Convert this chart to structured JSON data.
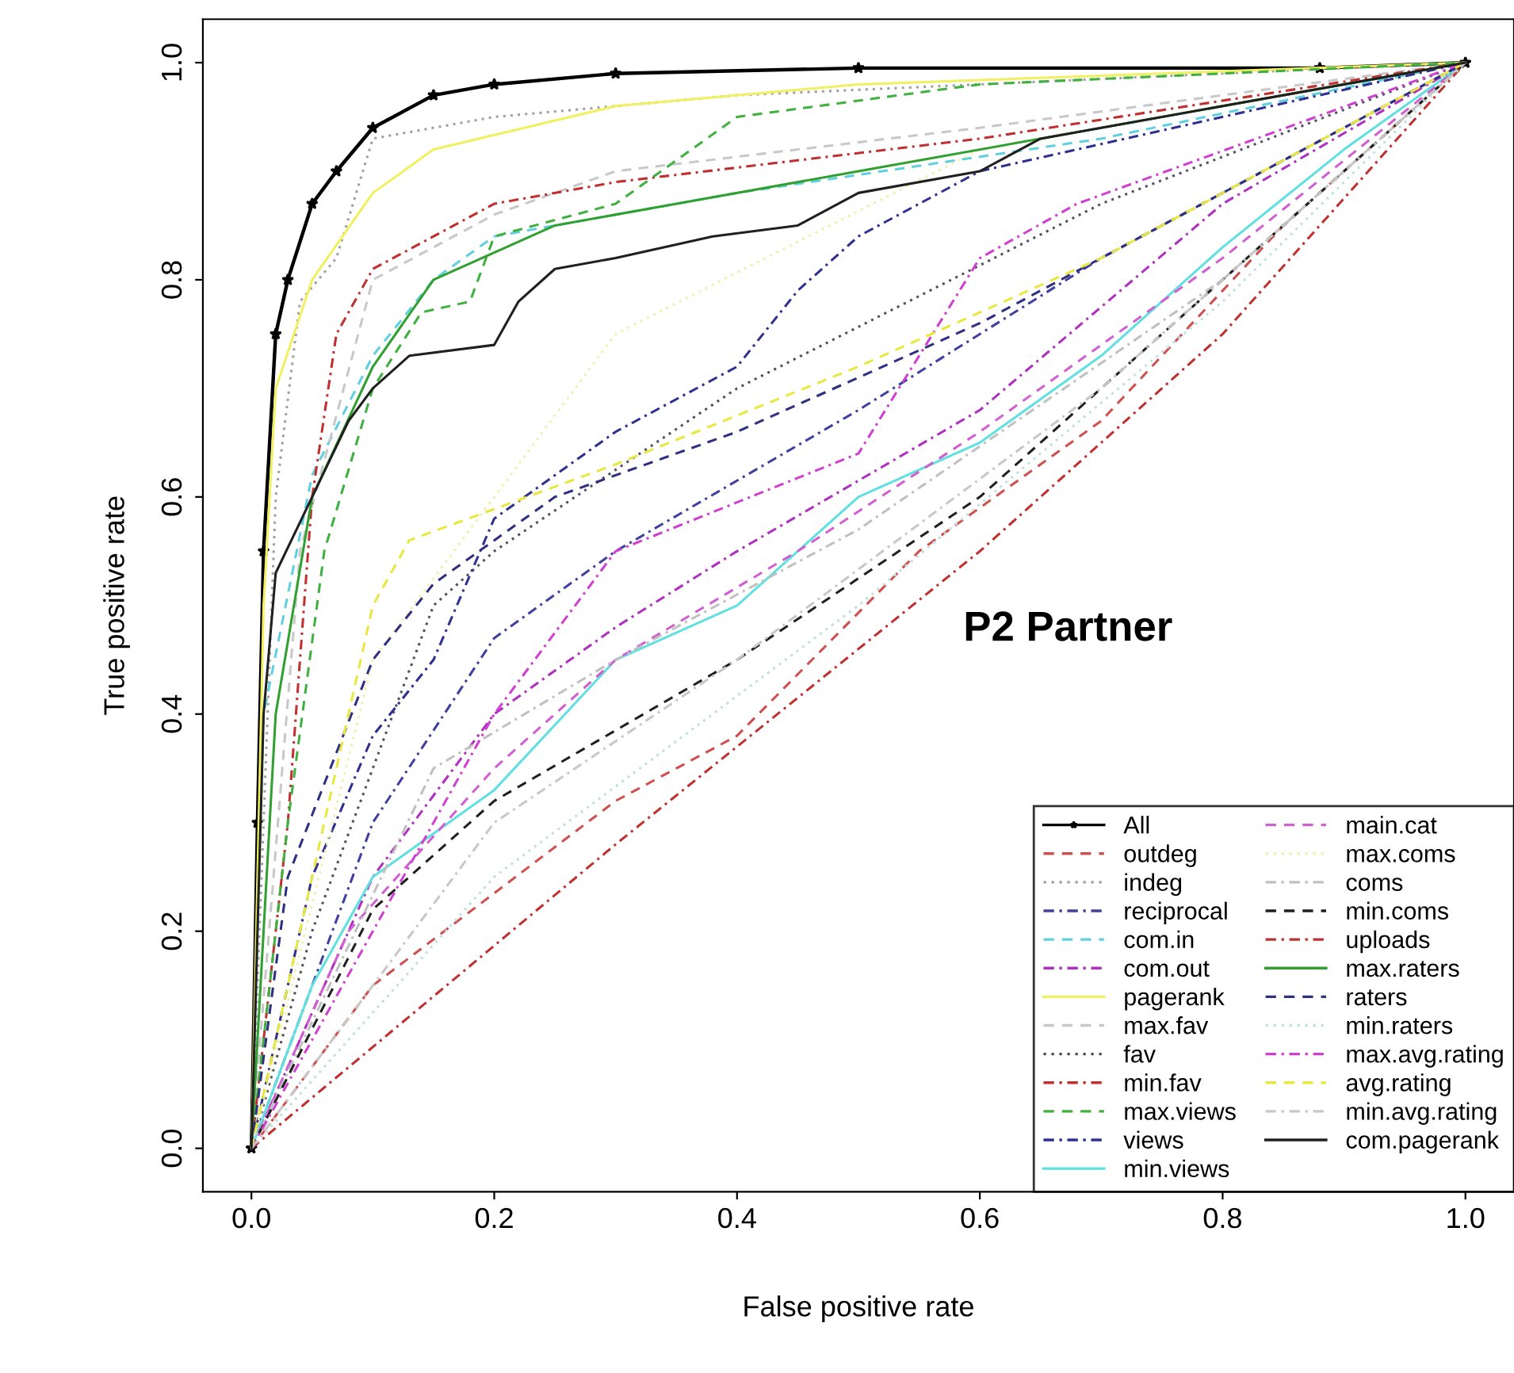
{
  "chart_data": {
    "type": "line",
    "xlabel": "False positive rate",
    "ylabel": "True positive rate",
    "annotations": [
      "P2 Partner"
    ],
    "xlim": [
      -0.04,
      1.04
    ],
    "ylim": [
      -0.04,
      1.04
    ],
    "xticks": [
      {
        "value": 0,
        "label": "0.0"
      },
      0.2,
      0.4,
      0.6,
      0.8,
      {
        "value": 1,
        "label": "1.0"
      }
    ],
    "yticks": [
      {
        "value": 0,
        "label": "0.0"
      },
      0.2,
      0.4,
      0.6,
      0.8,
      {
        "value": 1,
        "label": "1.0"
      }
    ],
    "grid": false,
    "legend": "bottom right",
    "series": [
      {
        "name": "All",
        "color": "#000000",
        "line_style": "solid",
        "marker": "star",
        "x": [
          0,
          0.005,
          0.01,
          0.02,
          0.03,
          0.05,
          0.07,
          0.1,
          0.15,
          0.2,
          0.3,
          0.5,
          0.88,
          1
        ],
        "values": [
          0,
          0.3,
          0.55,
          0.75,
          0.8,
          0.87,
          0.9,
          0.94,
          0.97,
          0.98,
          0.99,
          0.995,
          0.995,
          1
        ]
      },
      {
        "name": "outdeg",
        "color": "#d05050",
        "line_style": "dashed",
        "x": [
          0,
          0.1,
          0.3,
          0.4,
          0.55,
          0.7,
          0.85,
          1
        ],
        "values": [
          0,
          0.15,
          0.32,
          0.38,
          0.55,
          0.67,
          0.85,
          1
        ]
      },
      {
        "name": "indeg",
        "color": "#a0a0a0",
        "line_style": "dotted",
        "x": [
          0,
          0.02,
          0.04,
          0.07,
          0.1,
          0.2,
          0.4,
          1
        ],
        "values": [
          0,
          0.6,
          0.78,
          0.82,
          0.93,
          0.95,
          0.97,
          1
        ]
      },
      {
        "name": "reciprocal",
        "color": "#4040a0",
        "line_style": "dashdot",
        "x": [
          0,
          0.1,
          0.2,
          0.3,
          0.5,
          0.7,
          1
        ],
        "values": [
          0,
          0.3,
          0.47,
          0.55,
          0.68,
          0.82,
          1
        ]
      },
      {
        "name": "com.in",
        "color": "#60d0e0",
        "line_style": "dashed",
        "x": [
          0,
          0.01,
          0.05,
          0.1,
          0.15,
          0.2,
          0.4,
          0.7,
          1
        ],
        "values": [
          0,
          0.4,
          0.62,
          0.73,
          0.8,
          0.84,
          0.88,
          0.93,
          1
        ]
      },
      {
        "name": "com.out",
        "color": "#b030c0",
        "line_style": "dashdot",
        "x": [
          0,
          0.1,
          0.2,
          0.3,
          0.4,
          0.6,
          0.8,
          1
        ],
        "values": [
          0,
          0.25,
          0.4,
          0.48,
          0.55,
          0.68,
          0.87,
          1
        ]
      },
      {
        "name": "pagerank",
        "color": "#f0f060",
        "line_style": "solid",
        "x": [
          0,
          0.01,
          0.02,
          0.05,
          0.1,
          0.15,
          0.3,
          0.5,
          1
        ],
        "values": [
          0,
          0.5,
          0.7,
          0.8,
          0.88,
          0.92,
          0.96,
          0.98,
          1
        ]
      },
      {
        "name": "max.fav",
        "color": "#c8c8c8",
        "line_style": "dashed",
        "x": [
          0,
          0.04,
          0.1,
          0.2,
          0.3,
          0.6,
          1
        ],
        "values": [
          0,
          0.55,
          0.8,
          0.86,
          0.9,
          0.94,
          1
        ]
      },
      {
        "name": "fav",
        "color": "#505060",
        "line_style": "dotted",
        "x": [
          0,
          0.05,
          0.1,
          0.15,
          0.2,
          0.4,
          0.7,
          1
        ],
        "values": [
          0,
          0.2,
          0.35,
          0.5,
          0.55,
          0.7,
          0.87,
          1
        ]
      },
      {
        "name": "min.fav",
        "color": "#c03030",
        "line_style": "dashdot",
        "x": [
          0,
          0.03,
          0.05,
          0.07,
          0.1,
          0.15,
          0.2,
          0.3,
          0.6,
          1
        ],
        "values": [
          0,
          0.3,
          0.6,
          0.75,
          0.81,
          0.84,
          0.87,
          0.89,
          0.93,
          1
        ]
      },
      {
        "name": "max.views",
        "color": "#40b040",
        "line_style": "dashed",
        "x": [
          0,
          0.03,
          0.06,
          0.1,
          0.14,
          0.18,
          0.2,
          0.3,
          0.4,
          0.6,
          1
        ],
        "values": [
          0,
          0.3,
          0.55,
          0.7,
          0.77,
          0.78,
          0.84,
          0.87,
          0.95,
          0.98,
          1
        ]
      },
      {
        "name": "views",
        "color": "#303090",
        "line_style": "dashdot",
        "x": [
          0,
          0.05,
          0.1,
          0.15,
          0.2,
          0.3,
          0.4,
          0.45,
          0.5,
          0.6,
          1
        ],
        "values": [
          0,
          0.25,
          0.38,
          0.45,
          0.58,
          0.66,
          0.72,
          0.79,
          0.84,
          0.9,
          1
        ]
      },
      {
        "name": "min.views",
        "color": "#60e0e0",
        "line_style": "solid",
        "x": [
          0,
          0.05,
          0.1,
          0.2,
          0.3,
          0.4,
          0.5,
          0.6,
          0.7,
          0.8,
          0.9,
          1
        ],
        "values": [
          0,
          0.15,
          0.25,
          0.33,
          0.45,
          0.5,
          0.6,
          0.65,
          0.73,
          0.83,
          0.92,
          1
        ]
      },
      {
        "name": "main.cat",
        "color": "#d060d0",
        "line_style": "dashed",
        "x": [
          0,
          0.08,
          0.2,
          0.3,
          0.45,
          0.6,
          0.8,
          1
        ],
        "values": [
          0,
          0.2,
          0.35,
          0.45,
          0.55,
          0.66,
          0.82,
          1
        ]
      },
      {
        "name": "max.coms",
        "color": "#f0f0b0",
        "line_style": "dotted",
        "x": [
          0,
          0.1,
          0.3,
          0.6,
          1
        ],
        "values": [
          0,
          0.45,
          0.75,
          0.92,
          1
        ]
      },
      {
        "name": "coms",
        "color": "#c0c0c0",
        "line_style": "dashdot",
        "x": [
          0,
          0.15,
          0.3,
          0.5,
          0.8,
          1
        ],
        "values": [
          0,
          0.35,
          0.45,
          0.57,
          0.8,
          1
        ]
      },
      {
        "name": "min.coms",
        "color": "#202020",
        "line_style": "dashed",
        "x": [
          0,
          0.1,
          0.2,
          0.4,
          0.6,
          0.8,
          1
        ],
        "values": [
          0,
          0.22,
          0.32,
          0.45,
          0.6,
          0.8,
          1
        ]
      },
      {
        "name": "uploads",
        "color": "#c03030",
        "line_style": "dashdot",
        "x": [
          0,
          0.3,
          0.6,
          0.8,
          1
        ],
        "values": [
          0,
          0.28,
          0.55,
          0.75,
          1
        ]
      },
      {
        "name": "max.raters",
        "color": "#30a030",
        "line_style": "solid",
        "x": [
          0,
          0.02,
          0.05,
          0.1,
          0.15,
          0.25,
          0.5,
          1
        ],
        "values": [
          0,
          0.4,
          0.6,
          0.72,
          0.8,
          0.85,
          0.9,
          1
        ]
      },
      {
        "name": "raters",
        "color": "#303080",
        "line_style": "dashed",
        "x": [
          0,
          0.03,
          0.1,
          0.15,
          0.25,
          0.4,
          0.6,
          0.8,
          1
        ],
        "values": [
          0,
          0.25,
          0.45,
          0.52,
          0.6,
          0.66,
          0.76,
          0.88,
          1
        ]
      },
      {
        "name": "min.raters",
        "color": "#c0e0e0",
        "line_style": "dotted",
        "x": [
          0,
          0.2,
          0.5,
          0.8,
          1
        ],
        "values": [
          0,
          0.25,
          0.5,
          0.78,
          1
        ]
      },
      {
        "name": "max.avg.rating",
        "color": "#d040d0",
        "line_style": "dashdot",
        "x": [
          0,
          0.1,
          0.2,
          0.3,
          0.5,
          0.6,
          0.68,
          1
        ],
        "values": [
          0,
          0.2,
          0.4,
          0.55,
          0.64,
          0.82,
          0.87,
          1
        ]
      },
      {
        "name": "avg.rating",
        "color": "#e8e840",
        "line_style": "dashed",
        "x": [
          0,
          0.06,
          0.1,
          0.13,
          0.3,
          0.5,
          0.7,
          1
        ],
        "values": [
          0,
          0.3,
          0.5,
          0.56,
          0.63,
          0.72,
          0.82,
          1
        ]
      },
      {
        "name": "min.avg.rating",
        "color": "#c8c8c8",
        "line_style": "dashdot",
        "x": [
          0,
          0.2,
          0.4,
          0.7,
          1
        ],
        "values": [
          0,
          0.3,
          0.45,
          0.7,
          1
        ]
      },
      {
        "name": "com.pagerank",
        "color": "#202020",
        "line_style": "solid",
        "x": [
          0,
          0.01,
          0.02,
          0.05,
          0.08,
          0.1,
          0.13,
          0.2,
          0.22,
          0.25,
          0.3,
          0.38,
          0.45,
          0.5,
          0.6,
          0.65,
          0.8,
          1
        ],
        "values": [
          0,
          0.4,
          0.53,
          0.6,
          0.67,
          0.7,
          0.73,
          0.74,
          0.78,
          0.81,
          0.82,
          0.84,
          0.85,
          0.88,
          0.9,
          0.93,
          0.96,
          1
        ]
      }
    ]
  }
}
